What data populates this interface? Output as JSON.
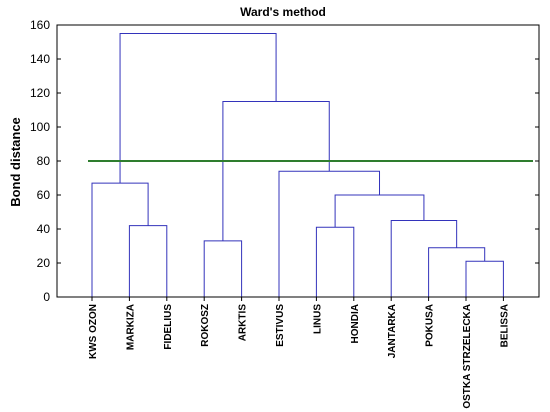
{
  "chart_data": {
    "type": "dendrogram",
    "title": "Ward's method",
    "ylabel": "Bond distance",
    "xlabel": "",
    "ylim": [
      0,
      160
    ],
    "yticks": [
      0,
      20,
      40,
      60,
      80,
      100,
      120,
      140,
      160
    ],
    "leaves": [
      "KWS OZON",
      "MARKIZA",
      "FIDELIUS",
      "ROKOSZ",
      "ARKTIS",
      "ESTIVUS",
      "LINUS",
      "HONDIA",
      "JANTARKA",
      "POKUSA",
      "OSTKA STRZELECKA",
      "BELISSA"
    ],
    "merges": [
      {
        "left": "MARKIZA",
        "right": "FIDELIUS",
        "height": 42
      },
      {
        "left": "KWS OZON",
        "right": "MARKIZA+FIDELIUS",
        "height": 67
      },
      {
        "left": "ROKOSZ",
        "right": "ARKTIS",
        "height": 33
      },
      {
        "left": "LINUS",
        "right": "HONDIA",
        "height": 41
      },
      {
        "left": "OSTKA STRZELECKA",
        "right": "BELISSA",
        "height": 21
      },
      {
        "left": "POKUSA",
        "right": "OSTKA STRZELECKA+BELISSA",
        "height": 29
      },
      {
        "left": "JANTARKA",
        "right": "POKUSA+OSTKA STRZELECKA+BELISSA",
        "height": 45
      },
      {
        "left": "LINUS+HONDIA",
        "right": "JANTARKA+POKUSA+OSTKA STRZELECKA+BELISSA",
        "height": 60
      },
      {
        "left": "ESTIVUS",
        "right": "LINUS+HONDIA+JANTARKA+POKUSA+OSTKA STRZELECKA+BELISSA",
        "height": 74
      },
      {
        "left": "ROKOSZ+ARKTIS",
        "right": "ESTIVUS+LINUS+HONDIA+JANTARKA+POKUSA+OSTKA STRZELECKA+BELISSA",
        "height": 115
      },
      {
        "left": "KWS OZON+MARKIZA+FIDELIUS",
        "right": "ROKOSZ+ARKTIS+ESTIVUS+LINUS+HONDIA+JANTARKA+POKUSA+OSTKA STRZELECKA+BELISSA",
        "height": 155
      }
    ],
    "cut_height": 80,
    "grid": false,
    "colors": {
      "links": "#3333bb",
      "cut_line": "#2e7d2e",
      "frame": "#000000"
    }
  }
}
